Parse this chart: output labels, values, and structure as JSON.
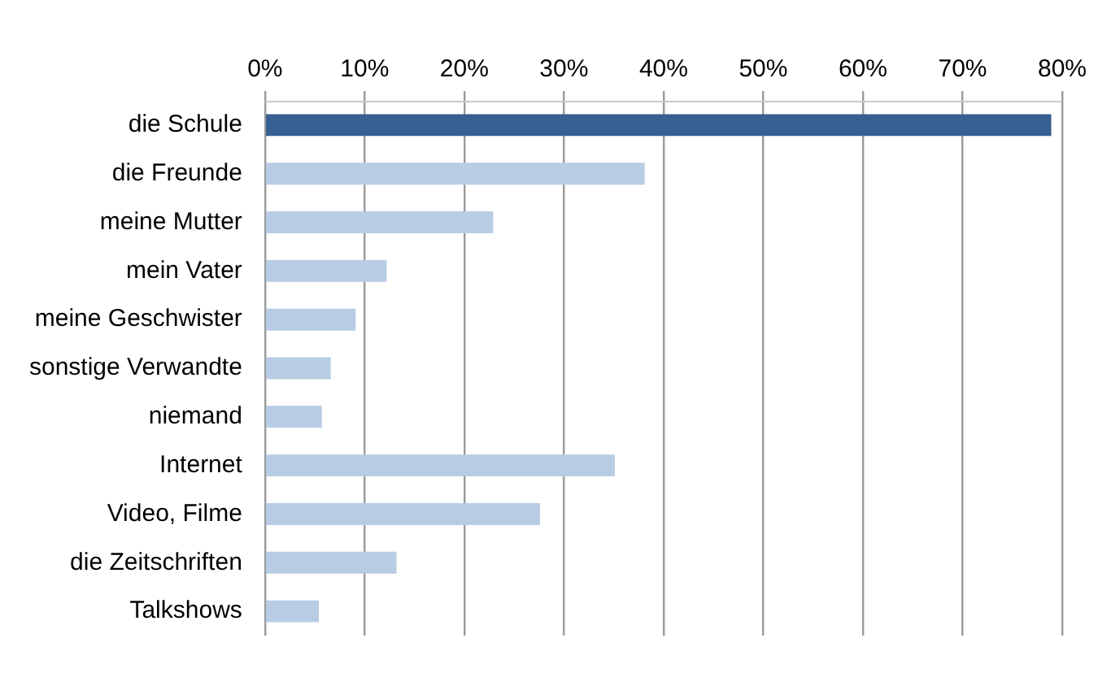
{
  "chart_data": {
    "type": "bar",
    "orientation": "horizontal",
    "categories": [
      "die Schule",
      "die Freunde",
      "meine Mutter",
      "mein Vater",
      "meine Geschwister",
      "sonstige Verwandte",
      "niemand",
      "Internet",
      "Video, Filme",
      "die Zeitschriften",
      "Talkshows"
    ],
    "values": [
      78.9,
      38.1,
      22.9,
      12.2,
      9.1,
      6.6,
      5.7,
      35.1,
      27.6,
      13.2,
      5.4
    ],
    "colors": [
      "#366092",
      "#b8cce4",
      "#b8cce4",
      "#b8cce4",
      "#b8cce4",
      "#b8cce4",
      "#b8cce4",
      "#b8cce4",
      "#b8cce4",
      "#b8cce4",
      "#b8cce4"
    ],
    "xlim": [
      0,
      80
    ],
    "xticks": [
      {
        "value": 0,
        "label": "0%"
      },
      {
        "value": 10,
        "label": "10%"
      },
      {
        "value": 20,
        "label": "20%"
      },
      {
        "value": 30,
        "label": "30%"
      },
      {
        "value": 40,
        "label": "40%"
      },
      {
        "value": 50,
        "label": "50%"
      },
      {
        "value": 60,
        "label": "60%"
      },
      {
        "value": 70,
        "label": "70%"
      },
      {
        "value": 80,
        "label": "80%"
      }
    ],
    "grid": "x",
    "legend": false
  }
}
